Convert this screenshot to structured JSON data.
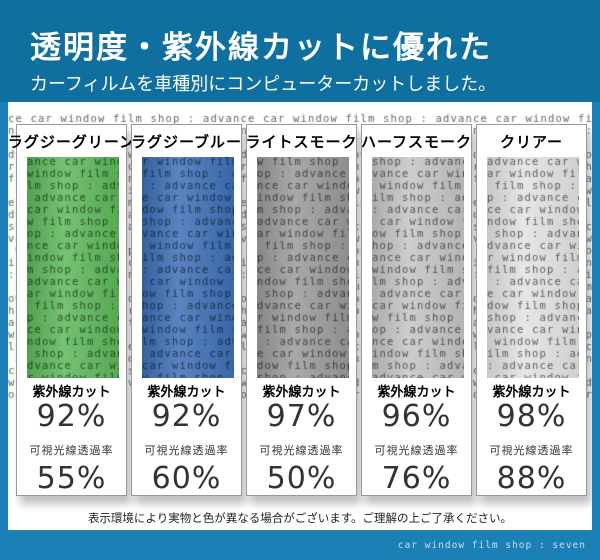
{
  "header": {
    "title": "透明度・紫外線カットに優れた",
    "subtitle": "カーフィルムを車種別にコンピューターカットしました。"
  },
  "background_pattern": "advance car window film shop : ",
  "uv_label": "紫外線カット",
  "vlt_label": "可視光線透過率",
  "films": [
    {
      "name": "ラグジーグリーン",
      "uv_cut": "92%",
      "visible_light": "55%",
      "color": "#5cb85a"
    },
    {
      "name": "ラグジーブルー",
      "uv_cut": "92%",
      "visible_light": "60%",
      "color": "#3d6fb6"
    },
    {
      "name": "ライトスモーク",
      "uv_cut": "97%",
      "visible_light": "50%",
      "color": "#9a9a9a"
    },
    {
      "name": "ハーフスモーク",
      "uv_cut": "96%",
      "visible_light": "76%",
      "color": "#c4c4c4"
    },
    {
      "name": "クリアー",
      "uv_cut": "98%",
      "visible_light": "88%",
      "color": "#e2e2e2"
    }
  ],
  "note": "表示環境により実物と色が異なる場合がございます。ご理解の上ご了承ください。",
  "footer": "car window film shop : seven"
}
